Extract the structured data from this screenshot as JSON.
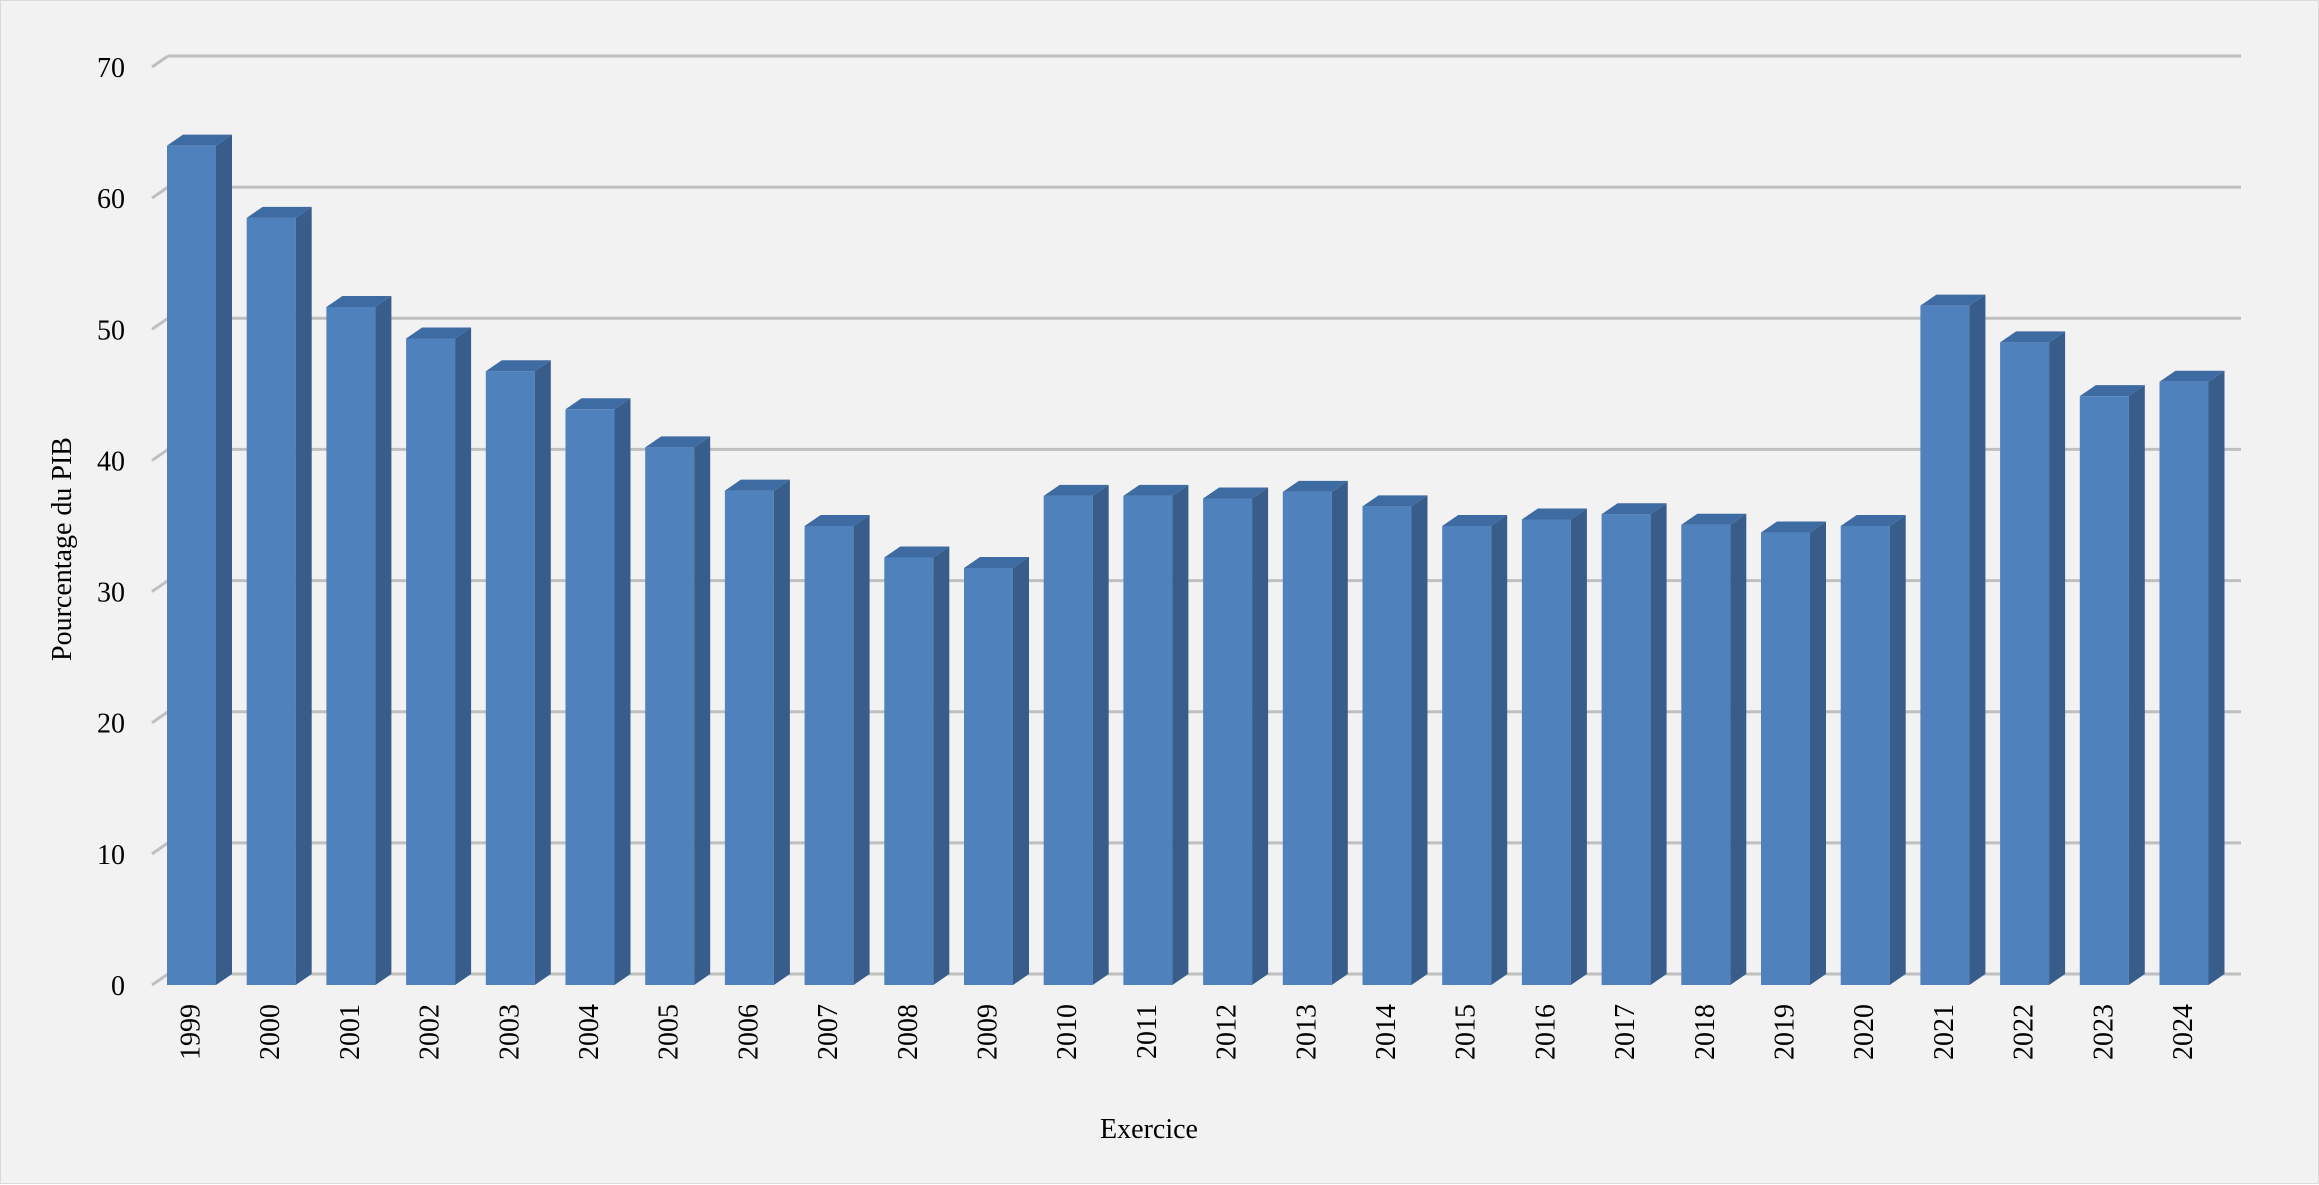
{
  "colors": {
    "background": "#f2f2f2",
    "bar_front": "#4f81bd",
    "bar_side": "#385d8a",
    "bar_top": "#3f6ba3",
    "gridline": "#bfbfbf"
  },
  "chart_data": {
    "type": "bar",
    "style": "3d-column",
    "title": "",
    "xlabel": "Exercice",
    "ylabel": "Pourcentage du PIB",
    "ylim": [
      0,
      70
    ],
    "yticks": [
      0,
      10,
      20,
      30,
      40,
      50,
      60,
      70
    ],
    "grid": true,
    "legend": "none",
    "categories": [
      "1999",
      "2000",
      "2001",
      "2002",
      "2003",
      "2004",
      "2005",
      "2006",
      "2007",
      "2008",
      "2009",
      "2010",
      "2011",
      "2012",
      "2013",
      "2014",
      "2015",
      "2016",
      "2017",
      "2018",
      "2019",
      "2020",
      "2021",
      "2022",
      "2023",
      "2024"
    ],
    "values": [
      64.0,
      58.5,
      51.7,
      49.3,
      46.8,
      43.9,
      41.0,
      37.7,
      35.0,
      32.6,
      31.8,
      37.3,
      37.3,
      37.1,
      37.6,
      36.5,
      35.0,
      35.5,
      35.9,
      35.1,
      34.5,
      35.0,
      51.8,
      49.0,
      44.9,
      46.0
    ]
  }
}
